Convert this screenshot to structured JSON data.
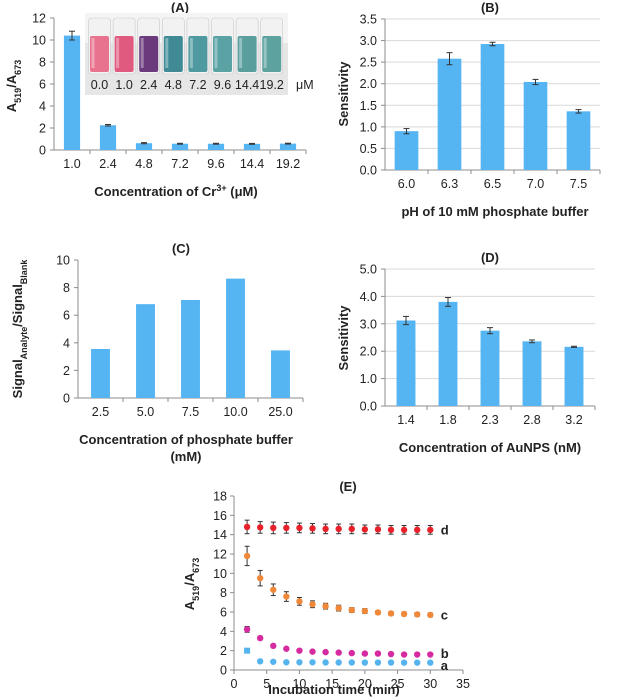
{
  "chart_data": [
    {
      "id": "A",
      "type": "bar",
      "title": "(A)",
      "xlabel": "Concentration of Cr",
      "xlabel_sup": "3+",
      "xlabel_unit": " (μM)",
      "ylabel": "A",
      "ylabel_sub1": "519",
      "ylabel_mid": "/A",
      "ylabel_sub2": "673",
      "categories": [
        "1.0",
        "2.4",
        "4.8",
        "7.2",
        "9.6",
        "14.4",
        "19.2"
      ],
      "values": [
        10.4,
        2.25,
        0.62,
        0.57,
        0.57,
        0.56,
        0.58
      ],
      "errors": [
        0.4,
        0.07,
        0.05,
        0.04,
        0.04,
        0.04,
        0.04
      ],
      "ylim": [
        0,
        12
      ],
      "yticks": [
        0,
        2,
        4,
        6,
        8,
        10,
        12
      ],
      "inset": {
        "labels": [
          "0.0",
          "1.0",
          "2.4",
          "4.8",
          "7.2",
          "9.6",
          "14.4",
          "19.2"
        ],
        "unit": "μM",
        "colors": [
          "#e8738f",
          "#e05a80",
          "#6b3a7c",
          "#3f8a95",
          "#4f9aa0",
          "#5aa2a4",
          "#5a9f9e",
          "#5ea2a0"
        ]
      }
    },
    {
      "id": "B",
      "type": "bar",
      "title": "(B)",
      "xlabel": "pH of 10 mM phosphate buffer",
      "ylabel": "Sensitivity",
      "categories": [
        "6.0",
        "6.3",
        "6.5",
        "7.0",
        "7.5"
      ],
      "values": [
        0.9,
        2.58,
        2.92,
        2.04,
        1.36
      ],
      "errors": [
        0.06,
        0.14,
        0.04,
        0.06,
        0.04
      ],
      "ylim": [
        0,
        3.5
      ],
      "yticks": [
        "0.0",
        "0.5",
        "1.0",
        "1.5",
        "2.0",
        "2.5",
        "3.0",
        "3.5"
      ]
    },
    {
      "id": "C",
      "type": "bar",
      "title": "(C)",
      "xlabel": "Concentration of phosphate buffer",
      "xlabel2": "(mM)",
      "ylabel": "Signal",
      "ylabel_sub1": "Analyte",
      "ylabel_mid": "/Signal",
      "ylabel_sub2": "Blank",
      "categories": [
        "2.5",
        "5.0",
        "7.5",
        "10.0",
        "25.0"
      ],
      "values": [
        3.55,
        6.8,
        7.1,
        8.65,
        3.45
      ],
      "ylim": [
        0,
        10
      ],
      "yticks": [
        0,
        2,
        4,
        6,
        8,
        10
      ]
    },
    {
      "id": "D",
      "type": "bar",
      "title": "(D)",
      "xlabel": "Concentration of AuNPS (nM)",
      "ylabel": "Sensitivity",
      "categories": [
        "1.4",
        "1.8",
        "2.3",
        "2.8",
        "3.2"
      ],
      "values": [
        3.12,
        3.8,
        2.75,
        2.36,
        2.16
      ],
      "errors": [
        0.15,
        0.16,
        0.11,
        0.05,
        0.02
      ],
      "ylim": [
        0,
        5
      ],
      "yticks": [
        "0.0",
        "1.0",
        "2.0",
        "3.0",
        "4.0",
        "5.0"
      ]
    },
    {
      "id": "E",
      "type": "scatter",
      "title": "(E)",
      "xlabel": "Incubation time (min)",
      "ylabel": "A",
      "ylabel_sub1": "519",
      "ylabel_mid": "/A",
      "ylabel_sub2": "673",
      "xlim": [
        0,
        35
      ],
      "ylim": [
        0,
        18
      ],
      "xticks": [
        0,
        5,
        10,
        15,
        20,
        25,
        30,
        35
      ],
      "yticks": [
        0,
        2,
        4,
        6,
        8,
        10,
        12,
        14,
        16,
        18
      ],
      "x": [
        2,
        4,
        6,
        8,
        10,
        12,
        14,
        16,
        18,
        20,
        22,
        24,
        26,
        28,
        30
      ],
      "series": [
        {
          "name": "d",
          "color": "#e8202a",
          "values": [
            14.8,
            14.75,
            14.7,
            14.7,
            14.7,
            14.65,
            14.6,
            14.6,
            14.6,
            14.55,
            14.55,
            14.5,
            14.5,
            14.5,
            14.5
          ],
          "errors": [
            0.7,
            0.6,
            0.6,
            0.55,
            0.5,
            0.5,
            0.5,
            0.5,
            0.5,
            0.45,
            0.45,
            0.45,
            0.45,
            0.45,
            0.45
          ]
        },
        {
          "name": "c",
          "color": "#f0883a",
          "values": [
            11.8,
            9.5,
            8.3,
            7.6,
            7.1,
            6.8,
            6.6,
            6.4,
            6.2,
            6.1,
            5.95,
            5.85,
            5.8,
            5.75,
            5.7
          ],
          "errors": [
            1.0,
            0.8,
            0.6,
            0.5,
            0.4,
            0.35,
            0.3,
            0.3,
            0.25,
            0.25,
            0.2,
            0.2,
            0.2,
            0.2,
            0.2
          ]
        },
        {
          "name": "b",
          "color": "#d62ba0",
          "values": [
            4.2,
            3.3,
            2.5,
            2.2,
            2.0,
            1.9,
            1.85,
            1.8,
            1.75,
            1.7,
            1.7,
            1.65,
            1.6,
            1.6,
            1.6
          ],
          "errors": [
            0.3,
            0.2,
            0.15,
            0.1,
            0.1,
            0.1,
            0.1,
            0.1,
            0.1,
            0.1,
            0.1,
            0.1,
            0.1,
            0.1,
            0.1
          ]
        },
        {
          "name": "a",
          "color": "#55b4ee",
          "values": [
            2.0,
            0.9,
            0.85,
            0.8,
            0.8,
            0.8,
            0.78,
            0.78,
            0.78,
            0.77,
            0.77,
            0.77,
            0.76,
            0.76,
            0.76
          ],
          "errors": [
            0.1,
            0.05,
            0.05,
            0.05,
            0.05,
            0.05,
            0.05,
            0.05,
            0.05,
            0.05,
            0.05,
            0.05,
            0.05,
            0.05,
            0.05
          ]
        }
      ]
    }
  ]
}
